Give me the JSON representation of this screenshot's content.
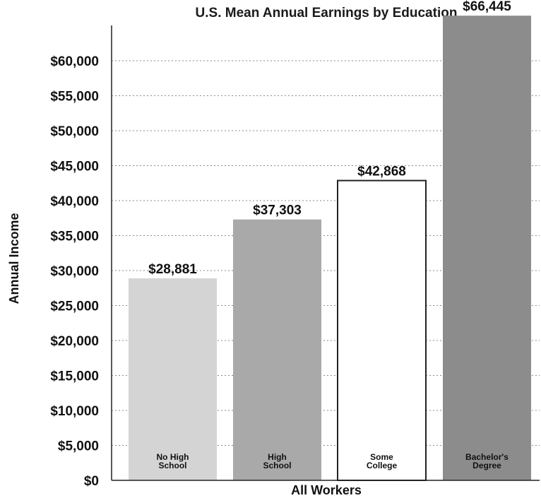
{
  "chart_data": {
    "type": "bar",
    "title": "U.S. Mean Annual Earnings by Education",
    "xlabel": "All Workers",
    "ylabel": "Annual Income",
    "categories": [
      [
        "No High",
        "School"
      ],
      [
        "High",
        "School"
      ],
      [
        "Some",
        "College"
      ],
      [
        "Bachelor's",
        "Degree"
      ]
    ],
    "values": [
      28881,
      37303,
      42868,
      66445
    ],
    "value_labels": [
      "$28,881",
      "$37,303",
      "$42,868",
      "$66,445"
    ],
    "bar_colors": [
      "#d4d4d4",
      "#a9a9a9",
      "#ffffff",
      "#8c8c8c"
    ],
    "ylim": [
      0,
      60000
    ],
    "yticks": [
      0,
      5000,
      10000,
      15000,
      20000,
      25000,
      30000,
      35000,
      40000,
      45000,
      50000,
      55000,
      60000
    ],
    "ytick_labels": [
      "$0",
      "$5,000",
      "$10,000",
      "$15,000",
      "$20,000",
      "$25,000",
      "$30,000",
      "$35,000",
      "$40,000",
      "$45,000",
      "$50,000",
      "$55,000",
      "$60,000"
    ],
    "grid": true
  }
}
